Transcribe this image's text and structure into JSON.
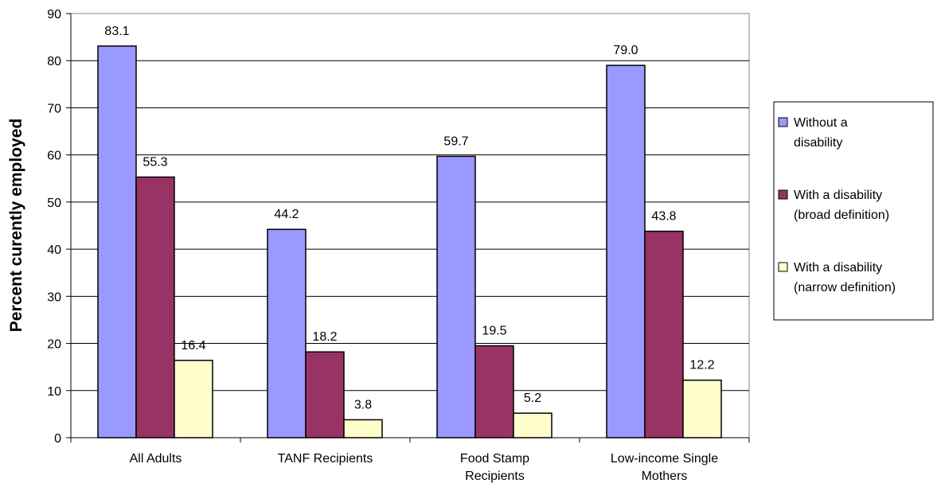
{
  "chart_data": {
    "type": "bar",
    "title": "",
    "xlabel": "",
    "ylabel": "Percent curently employed",
    "ylim": [
      0,
      90
    ],
    "yticks": [
      0,
      10,
      20,
      30,
      40,
      50,
      60,
      70,
      80,
      90
    ],
    "grid": true,
    "legend_position": "right",
    "categories": [
      [
        "All Adults"
      ],
      [
        "TANF Recipients"
      ],
      [
        "Food Stamp",
        "Recipients"
      ],
      [
        "Low-income Single",
        "Mothers"
      ]
    ],
    "series": [
      {
        "name": [
          "Without a",
          "disability"
        ],
        "color": "#9999FF",
        "values": [
          83.1,
          44.2,
          59.7,
          79.0
        ],
        "labels": [
          "83.1",
          "44.2",
          "59.7",
          "79.0"
        ]
      },
      {
        "name": [
          "With a disability",
          "(broad definition)"
        ],
        "color": "#993366",
        "values": [
          55.3,
          18.2,
          19.5,
          43.8
        ],
        "labels": [
          "55.3",
          "18.2",
          "19.5",
          "43.8"
        ]
      },
      {
        "name": [
          "With a disability",
          "(narrow definition)"
        ],
        "color": "#FFFFCC",
        "values": [
          16.4,
          3.8,
          5.2,
          12.2
        ],
        "labels": [
          "16.4",
          "3.8",
          "5.2",
          "12.2"
        ]
      }
    ]
  }
}
